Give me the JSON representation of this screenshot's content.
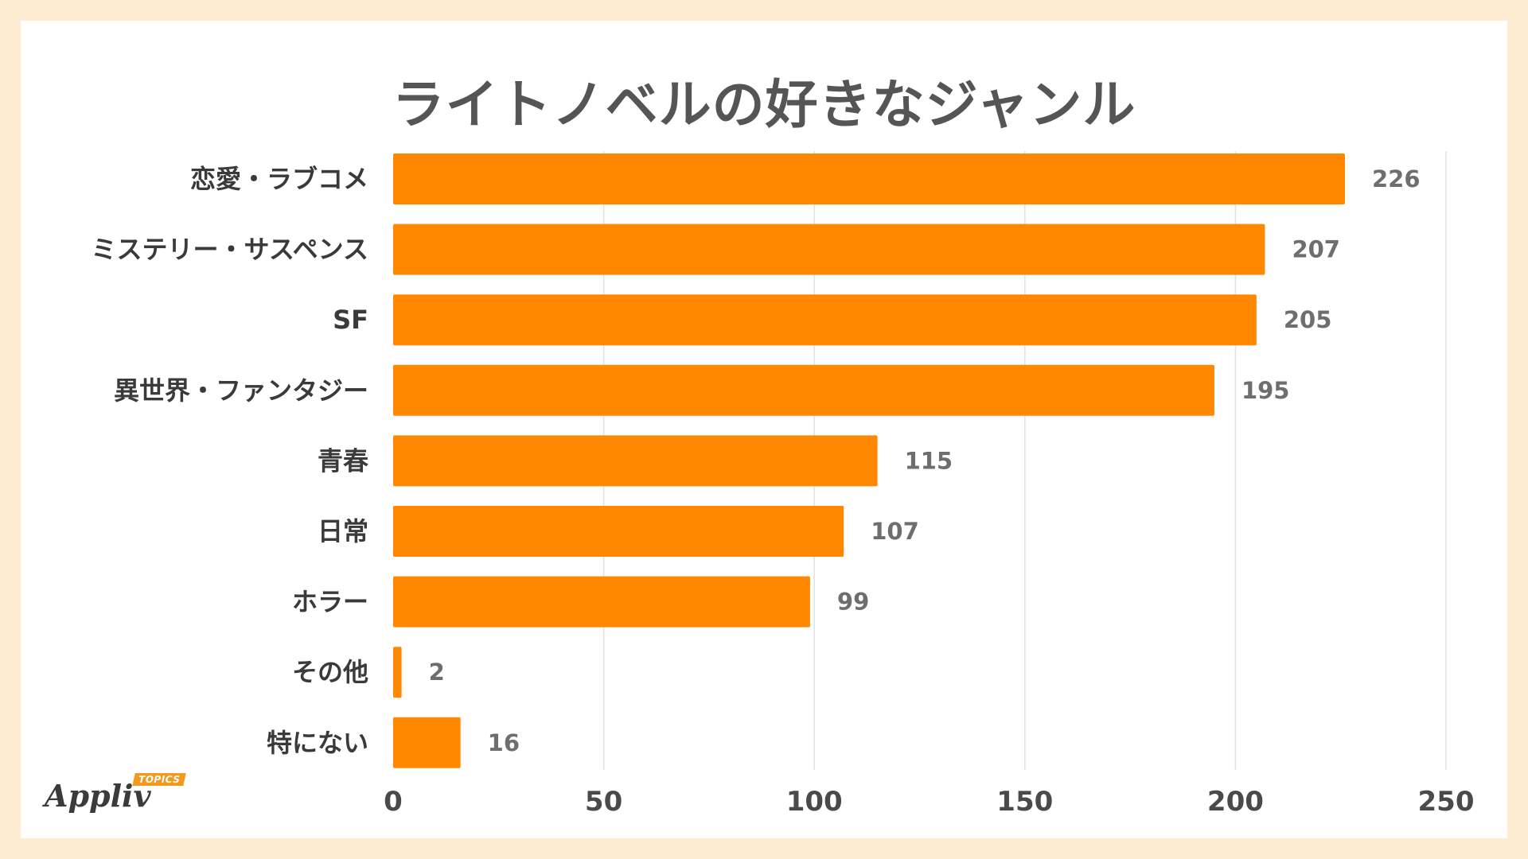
{
  "chart_data": {
    "type": "bar",
    "orientation": "horizontal",
    "title": "ライトノベルの好きなジャンル",
    "categories": [
      "恋愛・ラブコメ",
      "ミステリー・サスペンス",
      "SF",
      "異世界・ファンタジー",
      "青春",
      "日常",
      "ホラー",
      "その他",
      "特にない"
    ],
    "values": [
      226,
      207,
      205,
      195,
      115,
      107,
      99,
      2,
      16
    ],
    "xlim": [
      0,
      250
    ],
    "ticks": [
      0,
      50,
      100,
      150,
      200,
      250
    ],
    "grid": true,
    "bar_color": "#ff8800",
    "label_color": "#6e6e6e",
    "category_color": "#3a3a3a"
  },
  "branding": {
    "logo_text": "Appliv",
    "logo_badge": "TOPICS",
    "accent": "#f39a1e"
  }
}
